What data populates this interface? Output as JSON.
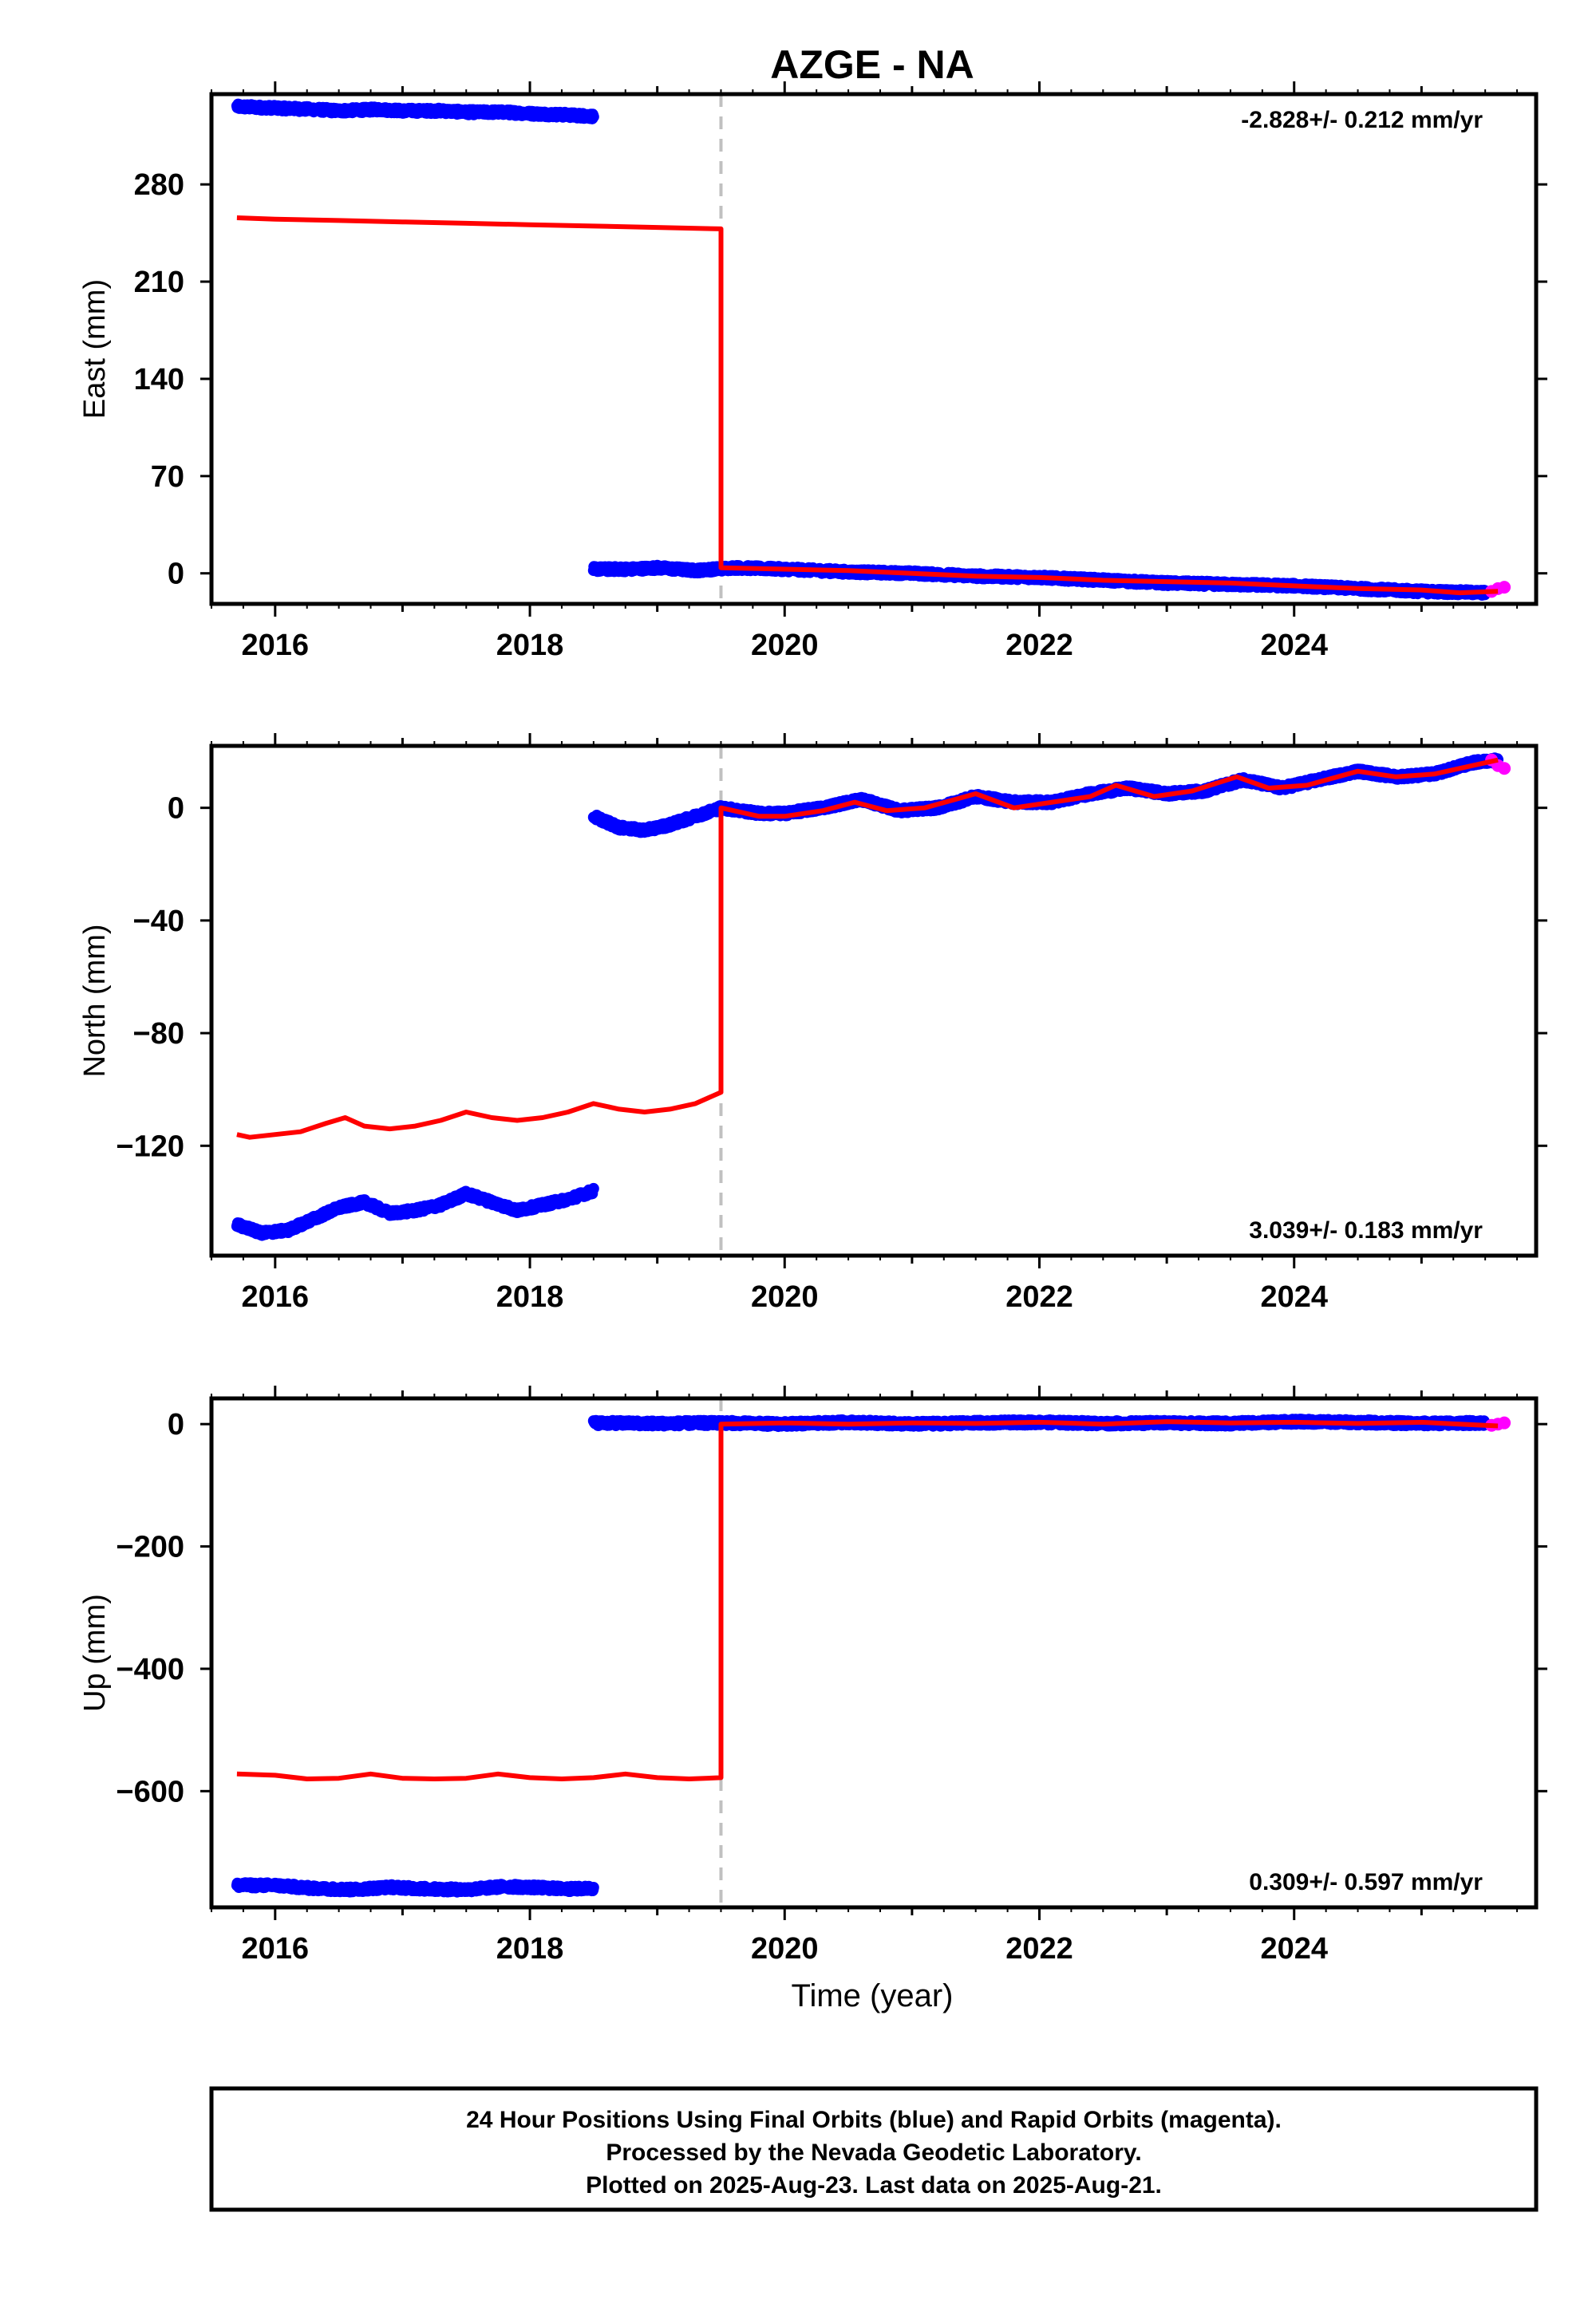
{
  "chart_data": {
    "type": "scatter",
    "title": "AZGE - NA",
    "xlabel": "Time (year)",
    "xlim": [
      2015.5,
      2025.9
    ],
    "x_ticks": [
      "2016",
      "2018",
      "2020",
      "2022",
      "2024"
    ],
    "x_tick_values": [
      2016,
      2018,
      2020,
      2022,
      2024
    ],
    "offset_epoch": 2019.5,
    "colors": {
      "final": "#0000ff",
      "rapid": "#ff00ff",
      "model": "#ff0000",
      "offset_line": "#c0c0c0"
    },
    "panels": [
      {
        "id": "east",
        "ylabel": "East (mm)",
        "ylim": [
          -22,
          345
        ],
        "y_ticks": [
          "0",
          "70",
          "140",
          "210",
          "280"
        ],
        "y_tick_values": [
          0,
          70,
          140,
          210,
          280
        ],
        "rate": "-2.828+/- 0.212 mm/yr",
        "rate_position": "top-right",
        "final_segments": [
          {
            "x": [
              2015.7,
              2016.0,
              2016.3,
              2016.5,
              2016.8,
              2017.0,
              2017.3,
              2017.5,
              2017.8,
              2018.0,
              2018.3,
              2018.5
            ],
            "y": [
              336,
              335,
              334,
              333,
              334,
              333,
              333,
              332,
              332,
              331,
              330,
              329
            ]
          },
          {
            "x": [
              2018.5,
              2018.8,
              2019.0,
              2019.3,
              2019.6,
              2020.0,
              2020.5,
              2021.0,
              2021.5,
              2022.0,
              2022.5,
              2023.0,
              2023.5,
              2024.0,
              2024.5,
              2025.0,
              2025.5
            ],
            "y": [
              3,
              3,
              4,
              2,
              4,
              3,
              1,
              0,
              -2,
              -3,
              -5,
              -7,
              -8,
              -9,
              -11,
              -13,
              -14
            ]
          }
        ],
        "rapid": {
          "x": [
            2025.55,
            2025.6,
            2025.65
          ],
          "y": [
            -13,
            -11,
            -10
          ]
        },
        "model": {
          "x": [
            2015.7,
            2016.0,
            2016.5,
            2017.0,
            2017.5,
            2018.0,
            2018.5,
            2019.0,
            2019.5,
            2019.5,
            2020.0,
            2020.5,
            2021.0,
            2021.5,
            2022.0,
            2022.5,
            2023.0,
            2023.5,
            2024.0,
            2024.5,
            2025.0,
            2025.3,
            2025.6
          ],
          "y": [
            256,
            255,
            254,
            253,
            252,
            251,
            250,
            249,
            248,
            4,
            3,
            2,
            0,
            -2,
            -3,
            -5,
            -6,
            -7,
            -9,
            -11,
            -12,
            -14,
            -13
          ]
        }
      },
      {
        "id": "north",
        "ylabel": "North (mm)",
        "ylim": [
          -159,
          22
        ],
        "y_ticks": [
          "0",
          "−40",
          "−80",
          "−120"
        ],
        "y_tick_values": [
          0,
          -40,
          -80,
          -120
        ],
        "rate": "3.039+/- 0.183 mm/yr",
        "rate_position": "bottom-right",
        "final_segments": [
          {
            "x": [
              2015.7,
              2015.9,
              2016.1,
              2016.3,
              2016.5,
              2016.7,
              2016.9,
              2017.1,
              2017.3,
              2017.5,
              2017.7,
              2017.9,
              2018.1,
              2018.3,
              2018.5
            ],
            "y": [
              -148,
              -151,
              -150,
              -146,
              -142,
              -140,
              -144,
              -143,
              -141,
              -137,
              -140,
              -143,
              -141,
              -139,
              -136
            ]
          },
          {
            "x": [
              2018.5,
              2018.7,
              2018.9,
              2019.1,
              2019.3,
              2019.5,
              2019.8,
              2020.0,
              2020.3,
              2020.6,
              2020.9,
              2021.2,
              2021.5,
              2021.8,
              2022.1,
              2022.4,
              2022.7,
              2023.0,
              2023.3,
              2023.6,
              2023.9,
              2024.2,
              2024.5,
              2024.8,
              2025.1,
              2025.4,
              2025.6
            ],
            "y": [
              -3,
              -7,
              -8,
              -6,
              -3,
              0,
              -2,
              -2,
              0,
              3,
              -1,
              0,
              4,
              2,
              2,
              5,
              7,
              5,
              6,
              10,
              7,
              10,
              13,
              11,
              12,
              16,
              17
            ]
          }
        ],
        "rapid": {
          "x": [
            2025.55,
            2025.6,
            2025.65
          ],
          "y": [
            17,
            15,
            14
          ]
        },
        "model": {
          "x": [
            2015.7,
            2015.8,
            2016.0,
            2016.2,
            2016.4,
            2016.55,
            2016.7,
            2016.9,
            2017.1,
            2017.3,
            2017.5,
            2017.7,
            2017.9,
            2018.1,
            2018.3,
            2018.5,
            2018.7,
            2018.9,
            2019.1,
            2019.3,
            2019.5,
            2019.5,
            2019.8,
            2020.0,
            2020.3,
            2020.55,
            2020.8,
            2021.1,
            2021.5,
            2021.8,
            2022.1,
            2022.4,
            2022.6,
            2022.9,
            2023.2,
            2023.55,
            2023.8,
            2024.1,
            2024.5,
            2024.8,
            2025.1,
            2025.4,
            2025.6
          ],
          "y": [
            -116,
            -117,
            -116,
            -115,
            -112,
            -110,
            -113,
            -114,
            -113,
            -111,
            -108,
            -110,
            -111,
            -110,
            -108,
            -105,
            -107,
            -108,
            -107,
            -105,
            -101,
            0,
            -3,
            -3,
            -1,
            2,
            -1,
            0,
            5,
            0,
            2,
            4,
            8,
            4,
            6,
            11,
            7,
            8,
            13,
            11,
            12,
            15,
            17
          ]
        }
      },
      {
        "id": "up",
        "ylabel": "Up (mm)",
        "ylim": [
          -790,
          42
        ],
        "y_ticks": [
          "0",
          "−200",
          "−400",
          "−600"
        ],
        "y_tick_values": [
          0,
          -200,
          -400,
          -600
        ],
        "rate": "0.309+/- 0.597 mm/yr",
        "rate_position": "bottom-right",
        "final_segments": [
          {
            "x": [
              2015.7,
              2016.0,
              2016.3,
              2016.6,
              2016.9,
              2017.2,
              2017.5,
              2017.8,
              2018.1,
              2018.3,
              2018.5
            ],
            "y": [
              -754,
              -754,
              -759,
              -761,
              -757,
              -760,
              -761,
              -756,
              -758,
              -760,
              -759
            ]
          },
          {
            "x": [
              2018.5,
              2019.0,
              2019.5,
              2020.0,
              2020.5,
              2021.0,
              2021.5,
              2022.0,
              2022.5,
              2023.0,
              2023.5,
              2024.0,
              2024.5,
              2025.0,
              2025.5
            ],
            "y": [
              2,
              1,
              2,
              0,
              3,
              0,
              2,
              3,
              1,
              2,
              1,
              4,
              3,
              1,
              2
            ]
          }
        ],
        "rapid": {
          "x": [
            2025.55,
            2025.6,
            2025.65
          ],
          "y": [
            -2,
            0,
            2
          ]
        },
        "model": {
          "x": [
            2015.7,
            2016.0,
            2016.25,
            2016.5,
            2016.75,
            2017.0,
            2017.25,
            2017.5,
            2017.75,
            2018.0,
            2018.25,
            2018.5,
            2018.75,
            2019.0,
            2019.25,
            2019.5,
            2019.5,
            2020.0,
            2020.5,
            2021.0,
            2021.5,
            2022.0,
            2022.5,
            2023.0,
            2023.5,
            2024.0,
            2024.5,
            2025.0,
            2025.3,
            2025.6
          ],
          "y": [
            -572,
            -574,
            -580,
            -579,
            -572,
            -579,
            -580,
            -579,
            -572,
            -578,
            -580,
            -578,
            -572,
            -578,
            -580,
            -578,
            0,
            2,
            0,
            2,
            1,
            3,
            0,
            4,
            2,
            3,
            1,
            3,
            0,
            -3
          ]
        }
      }
    ],
    "footer": [
      "24 Hour Positions Using Final Orbits (blue) and Rapid Orbits (magenta).",
      "Processed by the Nevada Geodetic Laboratory.",
      "Plotted on 2025-Aug-23. Last data on 2025-Aug-21."
    ]
  }
}
